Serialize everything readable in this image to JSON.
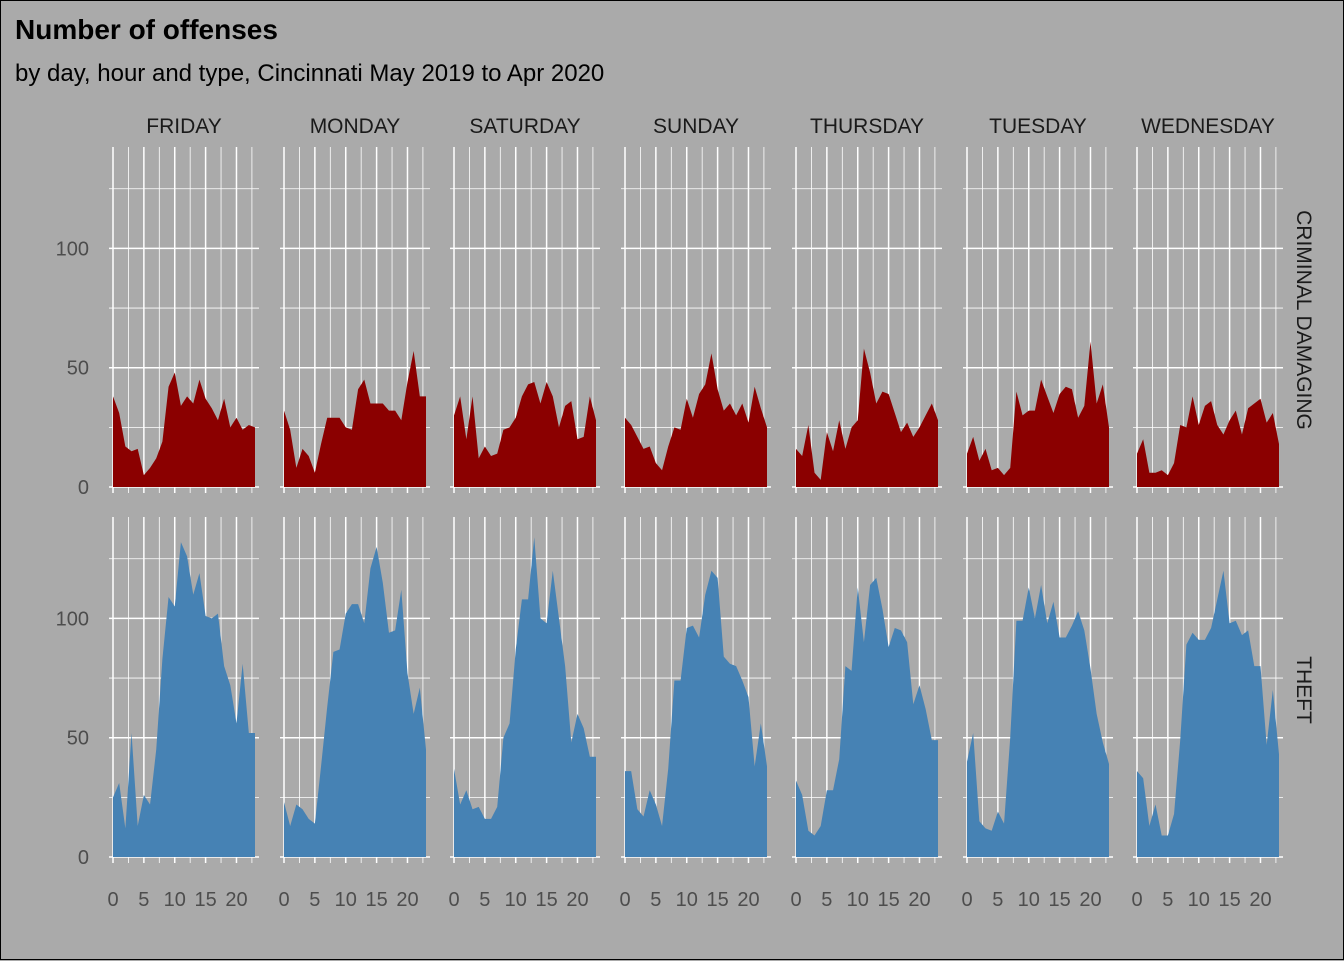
{
  "chart_data": {
    "type": "area",
    "title": "Number of offenses",
    "subtitle": "by day, hour and type, Cincinnati May 2019 to Apr 2020",
    "facet_columns": [
      "FRIDAY",
      "MONDAY",
      "SATURDAY",
      "SUNDAY",
      "THURSDAY",
      "TUESDAY",
      "WEDNESDAY"
    ],
    "facet_rows": [
      "CRIMINAL DAMAGING",
      "THEFT"
    ],
    "x": [
      0,
      1,
      2,
      3,
      4,
      5,
      6,
      7,
      8,
      9,
      10,
      11,
      12,
      13,
      14,
      15,
      16,
      17,
      18,
      19,
      20,
      21,
      22,
      23
    ],
    "x_ticks": [
      0,
      5,
      10,
      15,
      20
    ],
    "xlim": [
      0,
      23
    ],
    "y_ticks": [
      0,
      50,
      100
    ],
    "ylim": [
      0,
      140
    ],
    "grid": true,
    "legend": "none",
    "colors": {
      "CRIMINAL DAMAGING": "#8b0000",
      "THEFT": "#4682b4",
      "background": "#aaaaaa",
      "grid": "#ffffff"
    },
    "panels": [
      {
        "day": "FRIDAY",
        "type": "CRIMINAL DAMAGING",
        "values": [
          38,
          31,
          17,
          15,
          16,
          5,
          8,
          12,
          19,
          42,
          48,
          34,
          38,
          35,
          45,
          37,
          33,
          28,
          37,
          25,
          29,
          24,
          26,
          25
        ]
      },
      {
        "day": "MONDAY",
        "type": "CRIMINAL DAMAGING",
        "values": [
          32,
          24,
          8,
          16,
          13,
          6,
          18,
          29,
          29,
          29,
          25,
          24,
          41,
          45,
          35,
          35,
          35,
          32,
          32,
          28,
          44,
          57,
          38,
          38
        ]
      },
      {
        "day": "SATURDAY",
        "type": "CRIMINAL DAMAGING",
        "values": [
          30,
          38,
          20,
          38,
          12,
          17,
          13,
          14,
          24,
          25,
          29,
          38,
          43,
          44,
          35,
          44,
          38,
          25,
          34,
          36,
          20,
          21,
          38,
          28
        ]
      },
      {
        "day": "SUNDAY",
        "type": "CRIMINAL DAMAGING",
        "values": [
          29,
          26,
          21,
          16,
          17,
          10,
          7,
          17,
          25,
          24,
          37,
          29,
          39,
          43,
          56,
          41,
          32,
          35,
          30,
          35,
          27,
          42,
          33,
          25
        ]
      },
      {
        "day": "THURSDAY",
        "type": "CRIMINAL DAMAGING",
        "values": [
          16,
          13,
          26,
          6,
          3,
          23,
          15,
          28,
          16,
          25,
          28,
          58,
          48,
          35,
          40,
          39,
          31,
          23,
          27,
          21,
          25,
          30,
          35,
          28
        ]
      },
      {
        "day": "TUESDAY",
        "type": "CRIMINAL DAMAGING",
        "values": [
          14,
          21,
          11,
          16,
          7,
          8,
          5,
          8,
          40,
          30,
          32,
          32,
          45,
          38,
          31,
          39,
          42,
          41,
          29,
          34,
          61,
          35,
          43,
          25
        ]
      },
      {
        "day": "WEDNESDAY",
        "type": "CRIMINAL DAMAGING",
        "values": [
          14,
          20,
          6,
          6,
          7,
          5,
          10,
          26,
          25,
          38,
          26,
          34,
          36,
          26,
          22,
          28,
          32,
          22,
          33,
          35,
          37,
          27,
          31,
          18
        ]
      },
      {
        "day": "FRIDAY",
        "type": "THEFT",
        "values": [
          25,
          31,
          12,
          52,
          13,
          26,
          22,
          45,
          83,
          109,
          105,
          132,
          126,
          110,
          119,
          101,
          100,
          102,
          80,
          72,
          56,
          81,
          52,
          52
        ]
      },
      {
        "day": "MONDAY",
        "type": "THEFT",
        "values": [
          23,
          13,
          22,
          20,
          16,
          14,
          38,
          63,
          86,
          87,
          102,
          106,
          106,
          98,
          121,
          130,
          115,
          94,
          95,
          112,
          77,
          60,
          71,
          45
        ]
      },
      {
        "day": "SATURDAY",
        "type": "THEFT",
        "values": [
          37,
          22,
          28,
          20,
          21,
          16,
          16,
          21,
          50,
          56,
          87,
          108,
          108,
          134,
          100,
          98,
          120,
          100,
          80,
          48,
          60,
          54,
          42,
          42
        ]
      },
      {
        "day": "SUNDAY",
        "type": "THEFT",
        "values": [
          36,
          36,
          20,
          17,
          28,
          22,
          13,
          37,
          74,
          74,
          96,
          97,
          92,
          110,
          120,
          117,
          84,
          81,
          80,
          74,
          67,
          38,
          56,
          38
        ]
      },
      {
        "day": "THURSDAY",
        "type": "THEFT",
        "values": [
          32,
          26,
          11,
          9,
          13,
          28,
          28,
          41,
          80,
          78,
          113,
          90,
          114,
          117,
          104,
          88,
          96,
          95,
          90,
          64,
          72,
          62,
          49,
          49
        ]
      },
      {
        "day": "TUESDAY",
        "type": "THEFT",
        "values": [
          40,
          52,
          15,
          12,
          11,
          19,
          14,
          50,
          99,
          99,
          113,
          100,
          114,
          98,
          107,
          92,
          92,
          97,
          103,
          95,
          79,
          60,
          48,
          39
        ]
      },
      {
        "day": "WEDNESDAY",
        "type": "THEFT",
        "values": [
          36,
          33,
          13,
          22,
          9,
          9,
          18,
          49,
          89,
          94,
          91,
          91,
          96,
          108,
          120,
          98,
          99,
          93,
          95,
          80,
          80,
          47,
          70,
          43
        ]
      }
    ]
  }
}
